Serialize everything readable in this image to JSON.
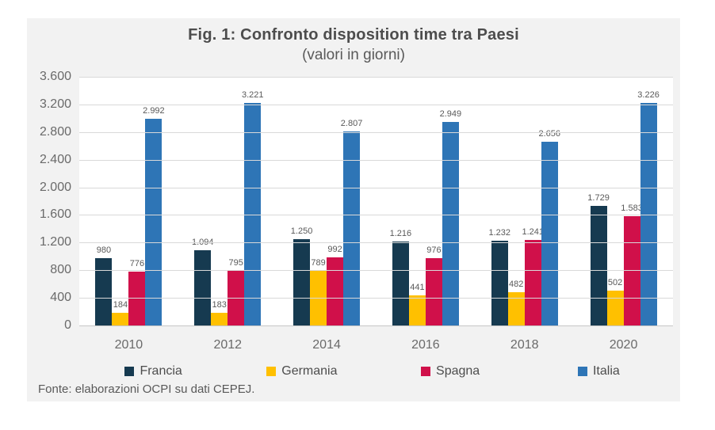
{
  "figure": {
    "title": "Fig. 1: Confronto disposition time tra Paesi",
    "subtitle": "(valori in giorni)",
    "source": "Fonte: elaborazioni OCPI su dati CEPEJ."
  },
  "chart_data": {
    "type": "bar",
    "title": "Fig. 1: Confronto disposition time tra Paesi",
    "subtitle": "(valori in giorni)",
    "xlabel": "",
    "ylabel": "",
    "ylim": [
      0,
      3600
    ],
    "y_tick_step": 400,
    "grid": true,
    "legend_position": "bottom",
    "categories": [
      "2010",
      "2012",
      "2014",
      "2016",
      "2018",
      "2020"
    ],
    "y_ticks": [
      "3.600",
      "3.200",
      "2.800",
      "2.400",
      "2.000",
      "1.600",
      "1.200",
      "800",
      "400",
      "0"
    ],
    "series": [
      {
        "name": "Francia",
        "color": "#163A50",
        "values": [
          980,
          1094,
          1250,
          1216,
          1232,
          1729
        ],
        "labels": [
          "980",
          "1.094",
          "1.250",
          "1.216",
          "1.232",
          "1.729"
        ]
      },
      {
        "name": "Germania",
        "color": "#FFC000",
        "values": [
          184,
          183,
          789,
          441,
          482,
          502
        ],
        "labels": [
          "184",
          "183",
          "789",
          "441",
          "482",
          "502"
        ]
      },
      {
        "name": "Spagna",
        "color": "#D0104A",
        "values": [
          776,
          795,
          992,
          976,
          1241,
          1583
        ],
        "labels": [
          "776",
          "795",
          "992",
          "976",
          "1.241",
          "1.583"
        ]
      },
      {
        "name": "Italia",
        "color": "#2E75B6",
        "values": [
          2992,
          3221,
          2807,
          2949,
          2656,
          3226
        ],
        "labels": [
          "2.992",
          "3.221",
          "2.807",
          "2.949",
          "2.656",
          "3.226"
        ]
      }
    ]
  },
  "colors": {
    "panel_bg": "#F2F2F2",
    "plot_bg": "#FFFFFF",
    "gridline": "#D9D9D9",
    "title_text": "#4D4D4D",
    "axis_text": "#6A6A6A",
    "data_label_text": "#595959"
  }
}
